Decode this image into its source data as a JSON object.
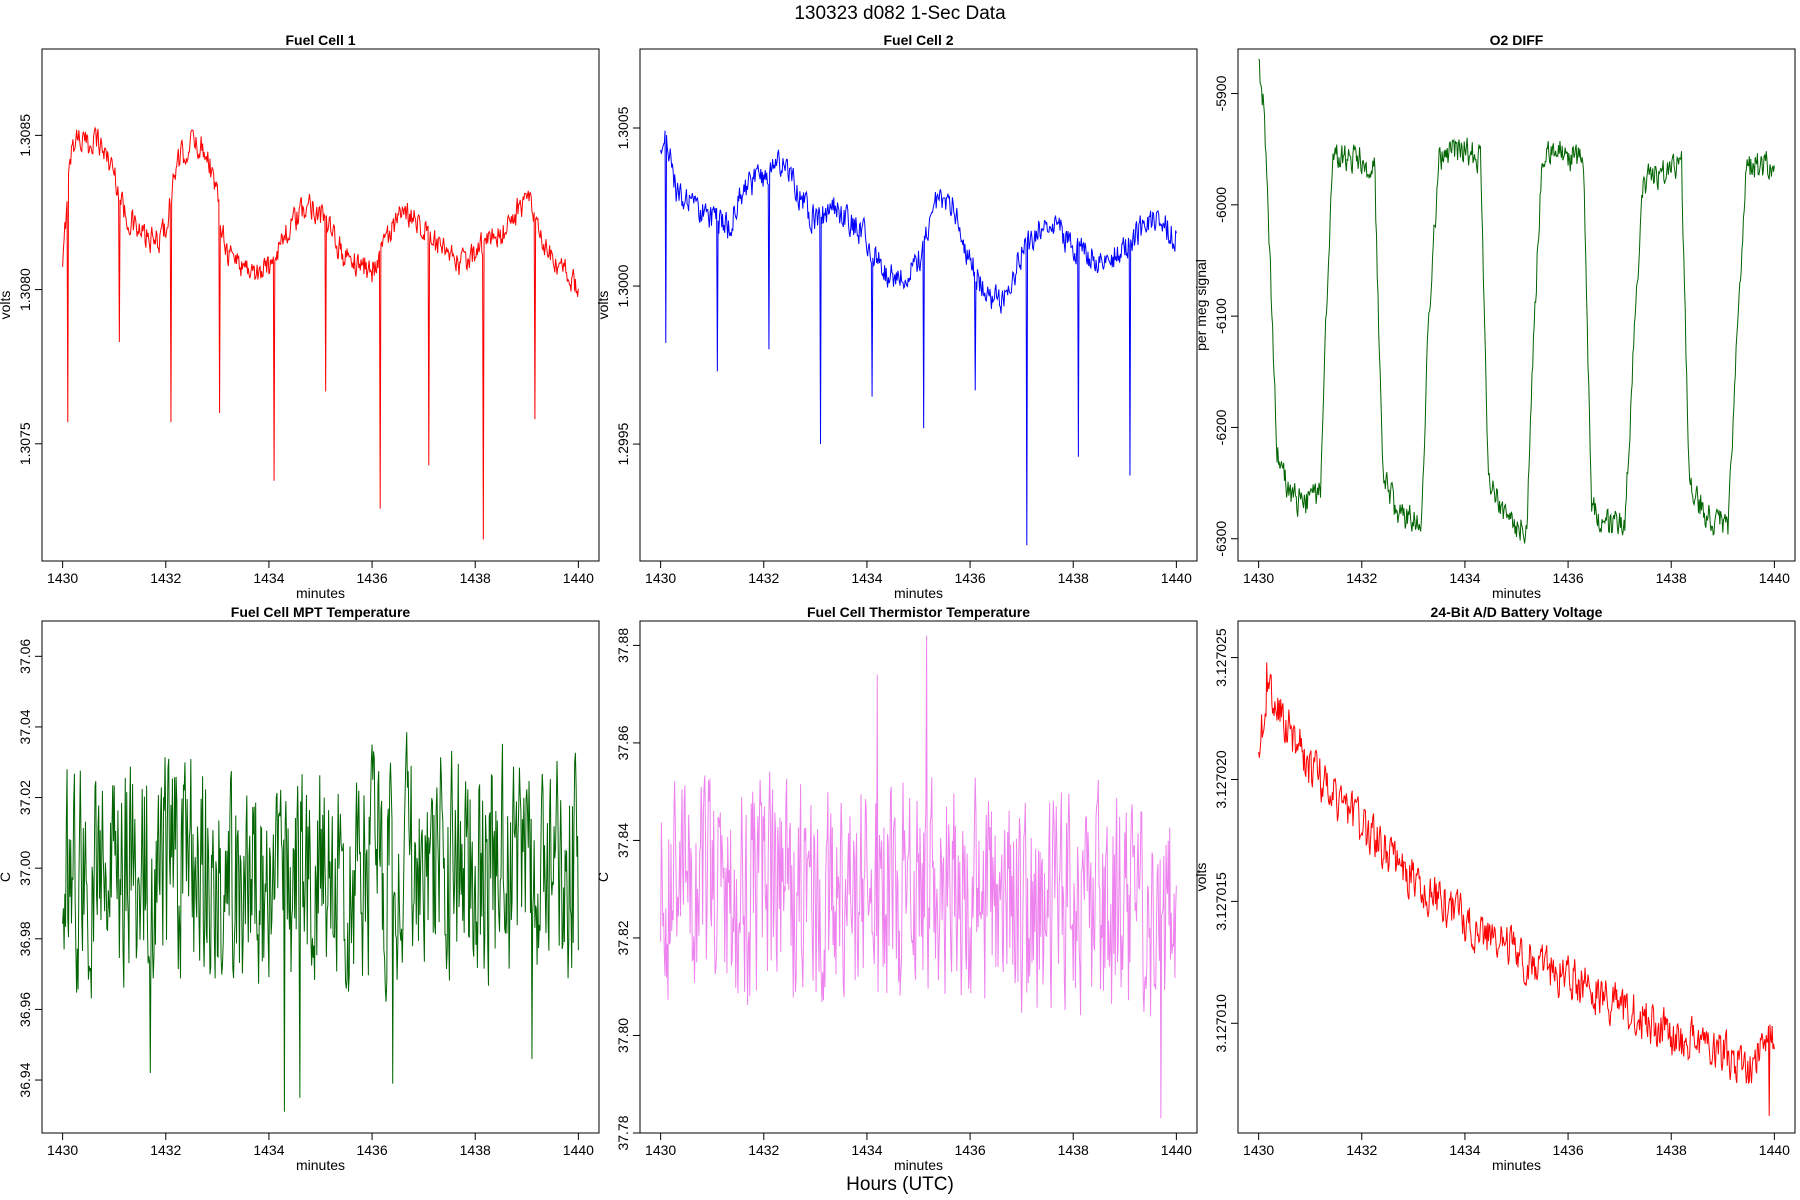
{
  "page": {
    "main_title": "130323    d082    1-Sec Data",
    "x_outer_label": "Hours (UTC)"
  },
  "chart_data": [
    {
      "type": "line",
      "title": "Fuel Cell 1",
      "xlabel": "minutes",
      "ylabel": "volts",
      "xlim": [
        1429.6,
        1440.4
      ],
      "ylim": [
        1.30712,
        1.30878
      ],
      "x_ticks": [
        1430,
        1432,
        1434,
        1436,
        1438,
        1440
      ],
      "x_tick_labels": [
        "1430",
        "1432",
        "1434",
        "1436",
        "1438",
        "1440"
      ],
      "y_ticks": [
        1.3075,
        1.308,
        1.3085
      ],
      "y_tick_labels": [
        "1.3075",
        "1.3080",
        "1.3085"
      ],
      "color": "#ff0000",
      "series": [
        {
          "x": [
            1430.0,
            1430.1,
            1430.2,
            1430.3,
            1430.4,
            1430.5,
            1430.6,
            1430.7,
            1430.8,
            1430.9,
            1431.0,
            1431.2,
            1431.5,
            1431.8,
            1432.0,
            1432.2,
            1432.5,
            1432.8,
            1433.0,
            1433.2,
            1433.5,
            1433.8,
            1434.0,
            1434.2,
            1434.5,
            1434.8,
            1435.0,
            1435.2,
            1435.5,
            1435.8,
            1436.0,
            1436.2,
            1436.5,
            1436.8,
            1437.0,
            1437.2,
            1437.5,
            1437.8,
            1438.0,
            1438.2,
            1438.5,
            1438.8,
            1439.0,
            1439.2,
            1439.5,
            1439.8,
            1440.0
          ],
          "y": [
            1.30805,
            1.30835,
            1.30848,
            1.3085,
            1.30848,
            1.30846,
            1.3085,
            1.30848,
            1.30845,
            1.30842,
            1.30838,
            1.30825,
            1.30818,
            1.30815,
            1.3082,
            1.3084,
            1.30848,
            1.30845,
            1.3083,
            1.30812,
            1.30808,
            1.30805,
            1.30808,
            1.30815,
            1.30822,
            1.30828,
            1.30825,
            1.30818,
            1.3081,
            1.30808,
            1.30806,
            1.30815,
            1.30822,
            1.30825,
            1.3082,
            1.30815,
            1.3081,
            1.30808,
            1.30812,
            1.30815,
            1.30818,
            1.30825,
            1.3083,
            1.3082,
            1.30808,
            1.30805,
            1.308
          ],
          "amplitude": 4e-05,
          "dips": [
            [
              1430.1,
              1.30757
            ],
            [
              1431.1,
              1.30783
            ],
            [
              1432.1,
              1.30757
            ],
            [
              1433.05,
              1.3076
            ],
            [
              1434.1,
              1.30738
            ],
            [
              1435.1,
              1.30767
            ],
            [
              1436.15,
              1.30729
            ],
            [
              1437.1,
              1.30743
            ],
            [
              1438.15,
              1.30719
            ],
            [
              1439.15,
              1.30758
            ]
          ]
        }
      ]
    },
    {
      "type": "line",
      "title": "Fuel Cell 2",
      "xlabel": "minutes",
      "ylabel": "volts",
      "xlim": [
        1429.6,
        1440.4
      ],
      "ylim": [
        1.29913,
        1.30075
      ],
      "x_ticks": [
        1430,
        1432,
        1434,
        1436,
        1438,
        1440
      ],
      "x_tick_labels": [
        "1430",
        "1432",
        "1434",
        "1436",
        "1438",
        "1440"
      ],
      "y_ticks": [
        1.2995,
        1.3,
        1.3005
      ],
      "y_tick_labels": [
        "1.2995",
        "1.3000",
        "1.3005"
      ],
      "color": "#0000ff",
      "series": [
        {
          "x": [
            1430.0,
            1430.1,
            1430.3,
            1430.6,
            1431.0,
            1431.3,
            1431.6,
            1432.0,
            1432.3,
            1432.6,
            1433.0,
            1433.3,
            1433.6,
            1434.0,
            1434.3,
            1434.6,
            1435.0,
            1435.3,
            1435.6,
            1436.0,
            1436.3,
            1436.6,
            1437.0,
            1437.3,
            1437.6,
            1438.0,
            1438.3,
            1438.6,
            1439.0,
            1439.3,
            1439.6,
            1440.0
          ],
          "y": [
            1.3004,
            1.3005,
            1.3003,
            1.30025,
            1.30022,
            1.30018,
            1.3003,
            1.30035,
            1.3004,
            1.30032,
            1.3002,
            1.30025,
            1.30022,
            1.30015,
            1.30005,
            1.30002,
            1.30008,
            1.30025,
            1.30028,
            1.30008,
            1.29998,
            1.29995,
            1.3001,
            1.30018,
            1.3002,
            1.30012,
            1.3001,
            1.30008,
            1.30012,
            1.30018,
            1.30022,
            1.30015
          ],
          "amplitude": 4e-05,
          "dips": [
            [
              1430.1,
              1.29982
            ],
            [
              1431.1,
              1.29973
            ],
            [
              1432.1,
              1.2998
            ],
            [
              1433.1,
              1.2995
            ],
            [
              1434.1,
              1.29965
            ],
            [
              1435.1,
              1.29955
            ],
            [
              1436.1,
              1.29967
            ],
            [
              1437.1,
              1.29918
            ],
            [
              1438.1,
              1.29946
            ],
            [
              1439.1,
              1.2994
            ]
          ]
        }
      ]
    },
    {
      "type": "line",
      "title": "O2 DIFF",
      "xlabel": "minutes",
      "ylabel": "per meg signal",
      "xlim": [
        1429.6,
        1440.4
      ],
      "ylim": [
        -6320,
        -5860
      ],
      "x_ticks": [
        1430,
        1432,
        1434,
        1436,
        1438,
        1440
      ],
      "x_tick_labels": [
        "1430",
        "1432",
        "1434",
        "1436",
        "1438",
        "1440"
      ],
      "y_ticks": [
        -6300,
        -6200,
        -6100,
        -6000,
        -5900
      ],
      "y_tick_labels": [
        "-6300",
        "-6200",
        "-6100",
        "-6000",
        "-5900"
      ],
      "color": "#006400",
      "series": [
        {
          "x": [
            1430.0,
            1430.1,
            1430.15,
            1430.35,
            1430.6,
            1430.9,
            1431.2,
            1431.3,
            1431.45,
            1432.0,
            1432.25,
            1432.4,
            1432.7,
            1433.15,
            1433.3,
            1433.5,
            1434.0,
            1434.3,
            1434.45,
            1434.7,
            1435.2,
            1435.35,
            1435.5,
            1436.0,
            1436.3,
            1436.45,
            1436.7,
            1437.1,
            1437.3,
            1437.45,
            1438.0,
            1438.2,
            1438.35,
            1438.7,
            1439.1,
            1439.3,
            1439.45,
            1440.0
          ],
          "y": [
            -5880,
            -5910,
            -5960,
            -6220,
            -6260,
            -6270,
            -6260,
            -6100,
            -5955,
            -5960,
            -5970,
            -6240,
            -6280,
            -6285,
            -6100,
            -5960,
            -5950,
            -5960,
            -6240,
            -6280,
            -6290,
            -6100,
            -5950,
            -5955,
            -5965,
            -6270,
            -6285,
            -6290,
            -6100,
            -5980,
            -5965,
            -5965,
            -6250,
            -6280,
            -6290,
            -6100,
            -5965,
            -5965
          ],
          "amplitude": 12,
          "dips": []
        }
      ]
    },
    {
      "type": "line",
      "title": "Fuel Cell MPT Temperature",
      "xlabel": "minutes",
      "ylabel": "C",
      "xlim": [
        1429.6,
        1440.4
      ],
      "ylim": [
        36.925,
        37.07
      ],
      "x_ticks": [
        1430,
        1432,
        1434,
        1436,
        1438,
        1440
      ],
      "x_tick_labels": [
        "1430",
        "1432",
        "1434",
        "1436",
        "1438",
        "1440"
      ],
      "y_ticks": [
        36.94,
        36.96,
        36.98,
        37.0,
        37.02,
        37.04,
        37.06
      ],
      "y_tick_labels": [
        "36.94",
        "36.96",
        "36.98",
        "37.00",
        "37.02",
        "37.04",
        "37.06"
      ],
      "color": "#006400",
      "series": [
        {
          "x": [
            1430.0,
            1431.0,
            1432.0,
            1433.0,
            1434.0,
            1435.0,
            1436.0,
            1437.0,
            1438.0,
            1439.0,
            1440.0
          ],
          "y": [
            37.0,
            37.0,
            37.0,
            37.0,
            36.995,
            36.995,
            36.998,
            37.005,
            37.0,
            36.998,
            37.0
          ],
          "amplitude": 0.028,
          "dips": [
            [
              1431.7,
              36.942
            ],
            [
              1434.3,
              36.931
            ],
            [
              1434.6,
              36.935
            ],
            [
              1436.4,
              36.939
            ],
            [
              1439.1,
              36.946
            ]
          ]
        }
      ]
    },
    {
      "type": "line",
      "title": "Fuel Cell Thermistor Temperature",
      "xlabel": "minutes",
      "ylabel": "C",
      "xlim": [
        1429.6,
        1440.4
      ],
      "ylim": [
        37.78,
        37.885
      ],
      "x_ticks": [
        1430,
        1432,
        1434,
        1436,
        1438,
        1440
      ],
      "x_tick_labels": [
        "1430",
        "1432",
        "1434",
        "1436",
        "1438",
        "1440"
      ],
      "y_ticks": [
        37.78,
        37.8,
        37.82,
        37.84,
        37.86,
        37.88
      ],
      "y_tick_labels": [
        "37.78",
        "37.80",
        "37.82",
        "37.84",
        "37.86",
        "37.88"
      ],
      "color": "#ee82ee",
      "series": [
        {
          "x": [
            1430.0,
            1431.0,
            1432.0,
            1433.0,
            1434.0,
            1435.0,
            1436.0,
            1437.0,
            1438.0,
            1439.0,
            1440.0
          ],
          "y": [
            37.832,
            37.83,
            37.83,
            37.828,
            37.828,
            37.83,
            37.828,
            37.826,
            37.825,
            37.824,
            37.823
          ],
          "amplitude": 0.02,
          "dips": [
            [
              1434.2,
              37.874
            ],
            [
              1435.15,
              37.882
            ],
            [
              1439.7,
              37.783
            ]
          ]
        }
      ]
    },
    {
      "type": "line",
      "title": "24-Bit A/D Battery Voltage",
      "xlabel": "minutes",
      "ylabel": "volts",
      "xlim": [
        1429.6,
        1440.4
      ],
      "ylim": [
        3.1270055,
        3.1270265
      ],
      "x_ticks": [
        1430,
        1432,
        1434,
        1436,
        1438,
        1440
      ],
      "x_tick_labels": [
        "1430",
        "1432",
        "1434",
        "1436",
        "1438",
        "1440"
      ],
      "y_ticks": [
        3.12701,
        3.127015,
        3.12702,
        3.127025
      ],
      "y_tick_labels": [
        "3.127010",
        "3.127015",
        "3.127020",
        "3.127025"
      ],
      "color": "#ff0000",
      "series": [
        {
          "x": [
            1430.0,
            1430.2,
            1431.0,
            1432.0,
            1433.0,
            1434.0,
            1435.0,
            1436.0,
            1437.0,
            1438.0,
            1439.0,
            1439.5,
            1440.0
          ],
          "y": [
            3.1270215,
            3.1270235,
            3.1270205,
            3.127018,
            3.127016,
            3.1270142,
            3.1270128,
            3.1270118,
            3.1270108,
            3.1270095,
            3.1270088,
            3.1270082,
            3.1270095
          ],
          "amplitude": 8e-07,
          "dips": [
            [
              1430.15,
              3.1270248
            ],
            [
              1439.9,
              3.1270062
            ]
          ]
        }
      ]
    }
  ]
}
